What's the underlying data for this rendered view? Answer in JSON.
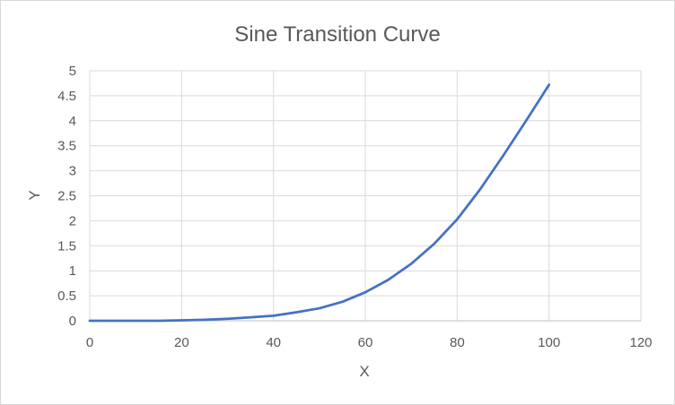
{
  "chart_data": {
    "type": "line",
    "title": "Sine Transition Curve",
    "xlabel": "X",
    "ylabel": "Y",
    "xlim": [
      0,
      120
    ],
    "ylim": [
      0,
      5
    ],
    "x_ticks": [
      "0",
      "20",
      "40",
      "60",
      "80",
      "100",
      "120"
    ],
    "y_ticks": [
      "0",
      "0.5",
      "1",
      "1.5",
      "2",
      "2.5",
      "3",
      "3.5",
      "4",
      "4.5",
      "5"
    ],
    "grid": true,
    "legend": "none",
    "series_color": "#4472c4",
    "series": [
      {
        "x": [
          0,
          5,
          10,
          15,
          20,
          25,
          30,
          35,
          40,
          45,
          50,
          55,
          60,
          65,
          70,
          75,
          80,
          85,
          90,
          95,
          100
        ],
        "y": [
          0,
          0,
          0,
          0,
          0.01,
          0.02,
          0.04,
          0.07,
          0.1,
          0.17,
          0.25,
          0.38,
          0.57,
          0.82,
          1.14,
          1.54,
          2.03,
          2.63,
          3.3,
          4.0,
          4.72
        ]
      }
    ]
  }
}
